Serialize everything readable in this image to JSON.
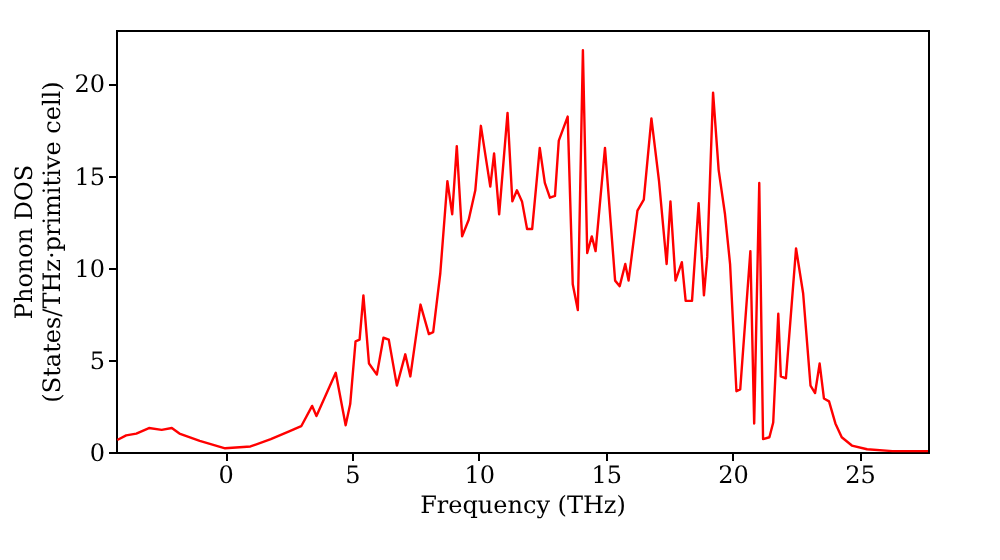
{
  "chart_data": {
    "type": "line",
    "xlabel": "Frequency (THz)",
    "ylabel": "Phonon DOS\n(States/THz·primitive cell)",
    "xlim": [
      -4.3,
      27.7
    ],
    "ylim": [
      0,
      22.9
    ],
    "xticks": [
      0,
      5,
      10,
      15,
      20,
      25
    ],
    "yticks": [
      0,
      5,
      10,
      15,
      20
    ],
    "grid": false,
    "marker": "none",
    "line_style": "solid",
    "x": [
      -4.25,
      -3.9,
      -3.5,
      -3.0,
      -2.5,
      -2.1,
      -1.8,
      -1.0,
      0,
      1.0,
      1.8,
      2.5,
      3.0,
      3.43,
      3.6,
      4.36,
      4.75,
      4.93,
      5.14,
      5.3,
      5.45,
      5.67,
      5.98,
      6.24,
      6.45,
      6.77,
      7.1,
      7.3,
      7.7,
      8.03,
      8.2,
      8.48,
      8.76,
      8.95,
      9.13,
      9.34,
      9.6,
      9.86,
      10.08,
      10.45,
      10.6,
      10.8,
      11.13,
      11.32,
      11.5,
      11.7,
      11.9,
      12.1,
      12.4,
      12.6,
      12.8,
      13.0,
      13.15,
      13.5,
      13.7,
      13.9,
      14.1,
      14.27,
      14.45,
      14.6,
      14.97,
      15.37,
      15.55,
      15.77,
      15.9,
      16.25,
      16.5,
      16.8,
      17.1,
      17.4,
      17.55,
      17.75,
      18.0,
      18.15,
      18.4,
      18.66,
      18.87,
      19.0,
      19.23,
      19.45,
      19.7,
      19.9,
      20.15,
      20.3,
      20.7,
      20.85,
      21.05,
      21.2,
      21.45,
      21.6,
      21.8,
      21.9,
      22.1,
      22.5,
      22.78,
      23.07,
      23.25,
      23.43,
      23.6,
      23.8,
      24.05,
      24.3,
      24.7,
      25.3,
      26.3,
      27.7
    ],
    "series": [
      {
        "color": "#ff0000",
        "values": [
          0.65,
          0.9,
          1.0,
          1.3,
          1.2,
          1.3,
          1.0,
          0.6,
          0.2,
          0.3,
          0.7,
          1.1,
          1.4,
          2.5,
          1.95,
          4.3,
          1.45,
          2.6,
          6.0,
          6.1,
          8.5,
          4.8,
          4.2,
          6.2,
          6.1,
          3.6,
          5.3,
          4.1,
          8.0,
          6.4,
          6.5,
          9.7,
          14.7,
          12.9,
          16.6,
          11.7,
          12.6,
          14.2,
          17.7,
          14.4,
          16.2,
          12.9,
          18.4,
          13.6,
          14.2,
          13.6,
          12.1,
          12.1,
          16.5,
          14.6,
          13.8,
          13.9,
          16.9,
          18.2,
          9.1,
          7.7,
          21.8,
          10.8,
          11.7,
          10.9,
          16.5,
          9.3,
          9.0,
          10.2,
          9.3,
          13.1,
          13.7,
          18.1,
          14.7,
          10.2,
          13.6,
          9.3,
          10.3,
          8.2,
          8.2,
          13.5,
          8.5,
          10.6,
          19.5,
          15.3,
          12.9,
          10.2,
          3.3,
          3.4,
          10.9,
          1.55,
          14.6,
          0.7,
          0.8,
          1.6,
          7.5,
          4.1,
          4.0,
          11.05,
          8.6,
          3.6,
          3.2,
          4.8,
          2.9,
          2.75,
          1.55,
          0.8,
          0.35,
          0.15,
          0.05,
          0.05
        ]
      }
    ]
  }
}
